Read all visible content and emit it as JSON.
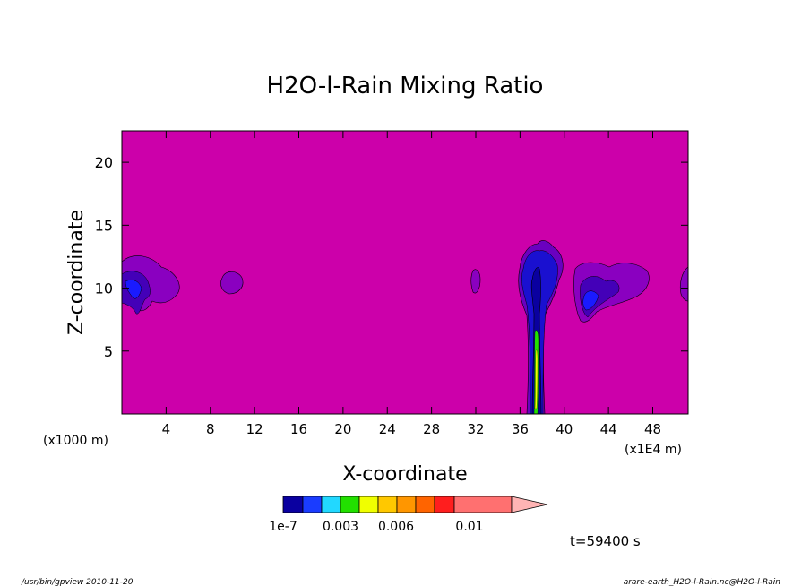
{
  "chart_data": {
    "type": "heatmap",
    "title": "H2O-l-Rain Mixing Ratio",
    "xlabel": "X-coordinate",
    "ylabel": "Z-coordinate",
    "x_unit_left": "(x1000 m)",
    "x_unit_right": "(x1E4 m)",
    "x_ticks": [
      "4",
      "8",
      "12",
      "16",
      "20",
      "24",
      "28",
      "32",
      "36",
      "40",
      "44",
      "48"
    ],
    "y_ticks": [
      "5",
      "10",
      "15",
      "20"
    ],
    "xlim": [
      0,
      51.2
    ],
    "ylim": [
      0,
      22.5
    ],
    "colorbar": {
      "colors": [
        "#0a00a0",
        "#1a3cff",
        "#22d8ff",
        "#22e000",
        "#f0ff00",
        "#ffc800",
        "#ff9600",
        "#ff6400",
        "#ff1e1e",
        "#ff7070",
        "#ffb4b4"
      ],
      "labels": [
        "1e-7",
        "0.003",
        "0.006",
        "0.01"
      ],
      "extend": "max"
    },
    "background_color": "#cc00aa",
    "time_label": "t=59400 s"
  },
  "footer": {
    "left": "/usr/bin/gpview   2010-11-20",
    "right": "arare-earth_H2O-l-Rain.nc@H2O-l-Rain"
  }
}
